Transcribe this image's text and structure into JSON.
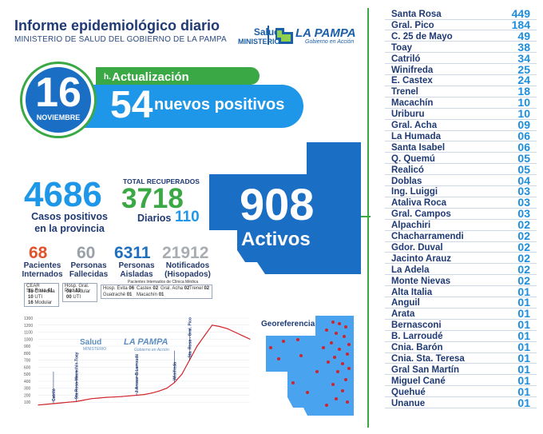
{
  "header": {
    "title": "Informe epidemiológico diario",
    "subtitle": "MINISTERIO DE SALUD DEL GOBIERNO DE LA PAMPA",
    "logo_salud": "Salud",
    "logo_ministerio": "MINISTERIO",
    "logo_lapampa": "LA PAMPA",
    "logo_gobierno": "Gobierno en Acción"
  },
  "date": {
    "day": "16",
    "month": "NOVIEMBRE"
  },
  "update": {
    "label": "Actualización 21",
    "suffix": "h."
  },
  "new_positives": {
    "value": "54",
    "label": "nuevos positivos"
  },
  "totals": {
    "cases": "4686",
    "cases_label_1": "Casos positivos",
    "cases_label_2": "en la provincia",
    "recovered_label": "TOTAL RECUPERADOS",
    "recovered": "3718",
    "daily_label": "Diarios",
    "daily": "110",
    "active": "908",
    "active_label": "Activos"
  },
  "stats": [
    {
      "value": "68",
      "l1": "Pacientes",
      "l2": "Internados",
      "color": "#e0542a"
    },
    {
      "value": "60",
      "l1": "Personas",
      "l2": "Fallecidas",
      "color": "#9aa0a8"
    },
    {
      "value": "6311",
      "l1": "Personas",
      "l2": "Aisladas",
      "color": "#1f6fbf"
    },
    {
      "value": "21912",
      "l1": "Notificados",
      "l2": "(Hisopados)",
      "color": "#a8adb3"
    }
  ],
  "hospital": {
    "header": "Pacientes Internados de Clínica Médica",
    "cear": "CEAR Sta.Rosa",
    "cear_v": "41",
    "cmedica": "C.Médica",
    "cmedica_v": "15",
    "uti": "UTI",
    "uti_v": "10",
    "modular": "Modular",
    "modular_v": "16",
    "gpico": "Hosp. Gral. Pico",
    "gpico_v": "13",
    "gp_modular": "Modular",
    "gp_modular_v": "08",
    "gp_uti": "UTI",
    "gp_uti_v": "00",
    "evita": "Hosp. Evita",
    "evita_v": "06",
    "castex": "Castex",
    "castex_v": "02",
    "gacha": "Gral. Acha",
    "gacha_v": "02",
    "trenel": "Trenel",
    "trenel_v": "02",
    "guatrache": "Guatraché",
    "guatrache_v": "01",
    "macachin": "Macachín",
    "macachin_v": "01"
  },
  "chart_data": {
    "type": "line",
    "ylim": [
      0,
      1300
    ],
    "yticks": [
      "1300",
      "1200",
      "1100",
      "1000",
      "900",
      "800",
      "700",
      "600",
      "500",
      "400",
      "300",
      "200",
      "100"
    ],
    "values": [
      60,
      70,
      80,
      90,
      100,
      110,
      130,
      150,
      160,
      170,
      175,
      180,
      190,
      200,
      210,
      230,
      260,
      300,
      380,
      500,
      700,
      900,
      1050,
      1200,
      1180,
      1150,
      1100,
      1050,
      1000
    ],
    "annotations": [
      "Catriló",
      "Sta.Rosa-Macachín-Toay",
      "J.Areaur-B.Larroudé",
      "Winifreda",
      "Sta. Rosa - Gral. Pico"
    ]
  },
  "map": {
    "geo_label": "Georeferencia"
  },
  "cities": [
    {
      "name": "Santa Rosa",
      "value": "449"
    },
    {
      "name": "Gral. Pico",
      "value": "184"
    },
    {
      "name": "C. 25 de Mayo",
      "value": "49"
    },
    {
      "name": "Toay",
      "value": "38"
    },
    {
      "name": "Catriló",
      "value": "34"
    },
    {
      "name": "Winifreda",
      "value": "25"
    },
    {
      "name": "E. Castex",
      "value": "24"
    },
    {
      "name": "Trenel",
      "value": "18"
    },
    {
      "name": "Macachín",
      "value": "10"
    },
    {
      "name": "Uriburu",
      "value": "10"
    },
    {
      "name": "Gral. Acha",
      "value": "09"
    },
    {
      "name": "La Humada",
      "value": "06"
    },
    {
      "name": "Santa Isabel",
      "value": "06"
    },
    {
      "name": "Q. Quemú",
      "value": "05"
    },
    {
      "name": "Realicó",
      "value": "05"
    },
    {
      "name": "Doblas",
      "value": "04"
    },
    {
      "name": "Ing. Luiggi",
      "value": "03"
    },
    {
      "name": "Ataliva Roca",
      "value": "03"
    },
    {
      "name": "Gral. Campos",
      "value": "03"
    },
    {
      "name": "Alpachiri",
      "value": "02"
    },
    {
      "name": "Chacharramendi",
      "value": "02"
    },
    {
      "name": "Gdor. Duval",
      "value": "02"
    },
    {
      "name": "Jacinto Arauz",
      "value": "02"
    },
    {
      "name": "La Adela",
      "value": "02"
    },
    {
      "name": "Monte Nievas",
      "value": "02"
    },
    {
      "name": "Alta Italia",
      "value": "01"
    },
    {
      "name": "Anguil",
      "value": "01"
    },
    {
      "name": "Arata",
      "value": "01"
    },
    {
      "name": "Bernasconi",
      "value": "01"
    },
    {
      "name": "B. Larroudé",
      "value": "01"
    },
    {
      "name": "Cnia. Barón",
      "value": "01"
    },
    {
      "name": "Cnia. Sta. Teresa",
      "value": "01"
    },
    {
      "name": "Gral San Martín",
      "value": "01"
    },
    {
      "name": "Miguel Cané",
      "value": "01"
    },
    {
      "name": "Quehué",
      "value": "01"
    },
    {
      "name": "Unanue",
      "value": "01"
    }
  ]
}
